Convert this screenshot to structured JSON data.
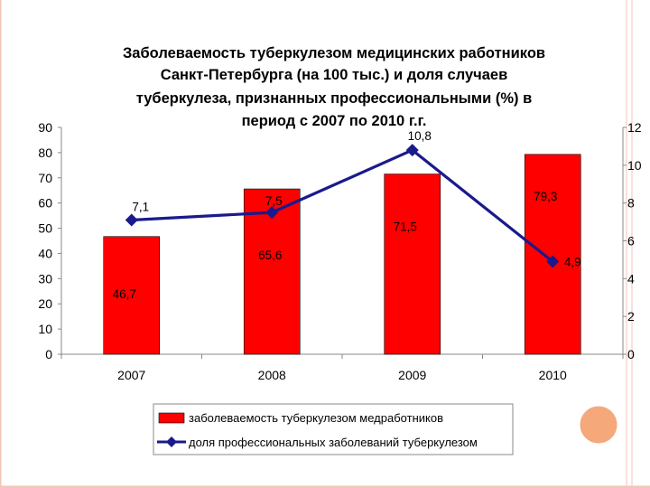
{
  "chart_data": {
    "type": "bar",
    "title": [
      "Заболеваемость туберкулезом медицинских работников",
      "Санкт-Петербурга  (на 100 тыс.) и доля случаев",
      "туберкулеза, признанных профессиональными  (%) в",
      "период с 2007 по 2010 г.г."
    ],
    "categories": [
      "2007",
      "2008",
      "2009",
      "2010"
    ],
    "series": [
      {
        "name": "заболеваемость туберкулезом медработников",
        "kind": "bar",
        "axis": "left",
        "color": "#ff0000",
        "values": [
          46.7,
          65.6,
          71.5,
          79.3
        ],
        "labels": [
          "46,7",
          "65,6",
          "71,5",
          "79,3"
        ]
      },
      {
        "name": "доля профессиональных заболеваний туберкулезом",
        "kind": "line",
        "axis": "right",
        "color": "#1a1a8c",
        "values": [
          7.1,
          7.5,
          10.8,
          4.9
        ],
        "labels": [
          "7,1",
          "7,5",
          "10,8",
          "4,9"
        ]
      }
    ],
    "y_left": {
      "min": 0,
      "max": 90,
      "ticks": [
        "0",
        "10",
        "20",
        "30",
        "40",
        "50",
        "60",
        "70",
        "80",
        "90"
      ]
    },
    "y_right": {
      "min": 0,
      "max": 12,
      "ticks": [
        "0",
        "2",
        "4",
        "6",
        "8",
        "10",
        "12"
      ]
    },
    "legend": "bottom",
    "grid": false
  },
  "decor": {
    "circle_color": "#f5a87a",
    "border_color": "#f2c6b8"
  }
}
